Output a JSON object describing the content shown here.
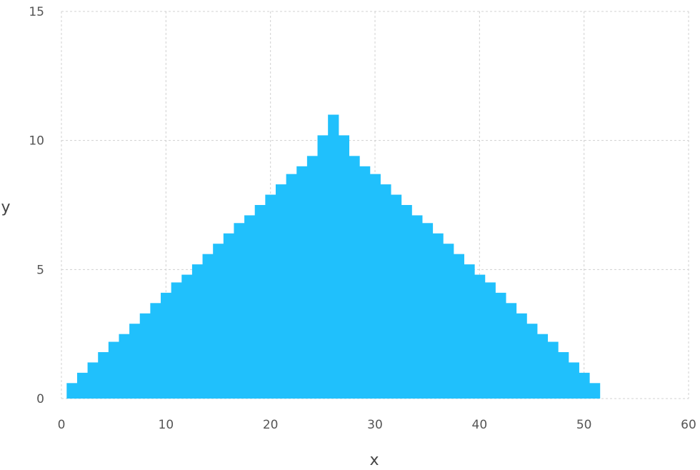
{
  "chart_data": {
    "type": "bar",
    "title": "",
    "xlabel": "x",
    "ylabel": "y",
    "xlim": [
      0,
      60
    ],
    "ylim": [
      0,
      15
    ],
    "x_ticks": [
      "0",
      "10",
      "20",
      "30",
      "40",
      "50",
      "60"
    ],
    "y_ticks": [
      "0",
      "5",
      "10",
      "15"
    ],
    "grid": true,
    "bar_width": 1,
    "color": "#20c0fc",
    "x": [
      1,
      2,
      3,
      4,
      5,
      6,
      7,
      8,
      9,
      10,
      11,
      12,
      13,
      14,
      15,
      16,
      17,
      18,
      19,
      20,
      21,
      22,
      23,
      24,
      25,
      26,
      27,
      28,
      29,
      30,
      31,
      32,
      33,
      34,
      35,
      36,
      37,
      38,
      39,
      40,
      41,
      42,
      43,
      44,
      45,
      46,
      47,
      48,
      49,
      50,
      51
    ],
    "values": [
      0.6,
      1.0,
      1.4,
      1.8,
      2.2,
      2.5,
      2.9,
      3.3,
      3.7,
      4.1,
      4.5,
      4.8,
      5.2,
      5.6,
      6.0,
      6.4,
      6.8,
      7.1,
      7.5,
      7.9,
      8.3,
      8.7,
      9.0,
      9.4,
      10.2,
      11.0,
      10.2,
      9.4,
      9.0,
      8.7,
      8.3,
      7.9,
      7.5,
      7.1,
      6.8,
      6.4,
      6.0,
      5.6,
      5.2,
      4.8,
      4.5,
      4.1,
      3.7,
      3.3,
      2.9,
      2.5,
      2.2,
      1.8,
      1.4,
      1.0,
      0.6
    ]
  }
}
